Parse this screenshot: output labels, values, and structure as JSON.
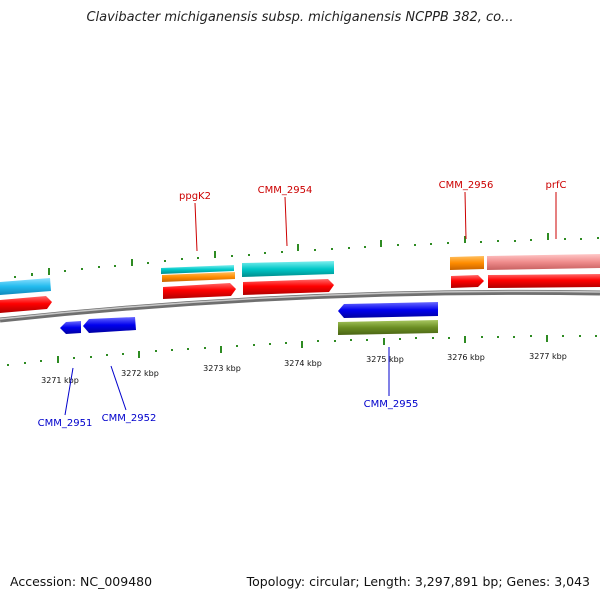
{
  "title": "Clavibacter michiganensis subsp. michiganensis NCPPB 382, co...",
  "footer": {
    "accession": "Accession: NC_009480",
    "summary": "Topology: circular; Length: 3,297,891 bp; Genes: 3,043"
  },
  "scale": {
    "ticks": [
      "3271 kbp",
      "3272 kbp",
      "3273 kbp",
      "3274 kbp",
      "3275 kbp",
      "3276 kbp",
      "3277 kbp"
    ]
  },
  "gene_labels": {
    "ppgK2": "ppgK2",
    "CMM_2954": "CMM_2954",
    "CMM_2956": "CMM_2956",
    "prfC": "prfC",
    "CMM_2951": "CMM_2951",
    "CMM_2952": "CMM_2952",
    "CMM_2955": "CMM_2955"
  },
  "colors": {
    "forward_label": "#cc0000",
    "reverse_label": "#0000cc",
    "gene_red": "#ff0000",
    "gene_cyan": "#00cccc",
    "gene_sky": "#22bbee",
    "gene_orange": "#ff8c00",
    "gene_pink": "#f09090",
    "gene_blue": "#0000ee",
    "gene_olive": "#6b8e23",
    "tick_green": "#2e8b22",
    "backbone": "#888888"
  }
}
